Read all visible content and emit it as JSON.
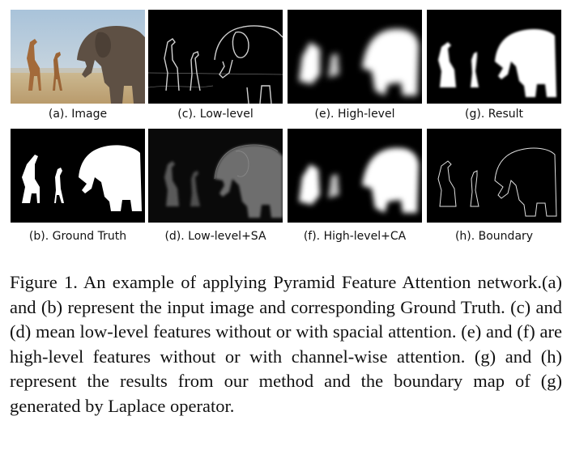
{
  "panels": [
    {
      "id": "a",
      "label": "(a). Image"
    },
    {
      "id": "c",
      "label": "(c). Low-level"
    },
    {
      "id": "e",
      "label": "(e). High-level"
    },
    {
      "id": "g",
      "label": "(g). Result"
    },
    {
      "id": "b",
      "label": "(b). Ground Truth"
    },
    {
      "id": "d",
      "label": "(d). Low-level+SA"
    },
    {
      "id": "f",
      "label": "(f). High-level+CA"
    },
    {
      "id": "h",
      "label": "(h). Boundary"
    }
  ],
  "caption": "Figure 1. An example of applying Pyramid Feature Attention network.(a) and (b) represent the input image and corresponding Ground Truth. (c) and (d) mean low-level features without or with spacial attention. (e) and (f) are high-level features without or with channel-wise attention. (g) and (h) represent the results from our method and the boundary map of (g) generated by Laplace operator.",
  "colors": {
    "sky": "#b7cbdc",
    "ground": "#d8c7a8",
    "elephant": "#5e5044",
    "giraffe": "#a36a3a",
    "mask": "#ffffff",
    "background": "#000000"
  }
}
